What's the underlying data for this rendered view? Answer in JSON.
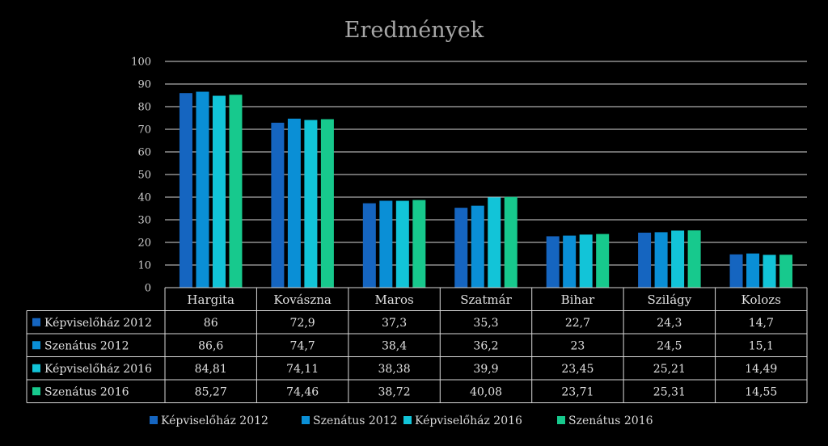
{
  "chart_data": {
    "type": "bar",
    "title": "Eredmények",
    "categories": [
      "Hargita",
      "Kovászna",
      "Maros",
      "Szatmár",
      "Bihar",
      "Szilágy",
      "Kolozs"
    ],
    "ylim": [
      0,
      100
    ],
    "yticks": [
      0,
      10,
      20,
      30,
      40,
      50,
      60,
      70,
      80,
      90,
      100
    ],
    "grid": true,
    "legend_position": "bottom",
    "series": [
      {
        "name": "Képviselőház 2012",
        "color": "#1565c0",
        "values": [
          86,
          72.9,
          37.3,
          35.3,
          22.7,
          24.3,
          14.7
        ],
        "labels": [
          "86",
          "72,9",
          "37,3",
          "35,3",
          "22,7",
          "24,3",
          "14,7"
        ]
      },
      {
        "name": "Szenátus 2012",
        "color": "#0a8fd6",
        "values": [
          86.6,
          74.7,
          38.4,
          36.2,
          23,
          24.5,
          15.1
        ],
        "labels": [
          "86,6",
          "74,7",
          "38,4",
          "36,2",
          "23",
          "24,5",
          "15,1"
        ]
      },
      {
        "name": "Képviselőház 2016",
        "color": "#12c4d8",
        "values": [
          84.81,
          74.11,
          38.38,
          39.9,
          23.45,
          25.21,
          14.49
        ],
        "labels": [
          "84,81",
          "74,11",
          "38,38",
          "39,9",
          "23,45",
          "25,21",
          "14,49"
        ]
      },
      {
        "name": "Szenátus 2016",
        "color": "#17c98d",
        "values": [
          85.27,
          74.46,
          38.72,
          40.08,
          23.71,
          25.31,
          14.55
        ],
        "labels": [
          "85,27",
          "74,46",
          "38,72",
          "40,08",
          "23,71",
          "25,31",
          "14,55"
        ]
      }
    ]
  }
}
